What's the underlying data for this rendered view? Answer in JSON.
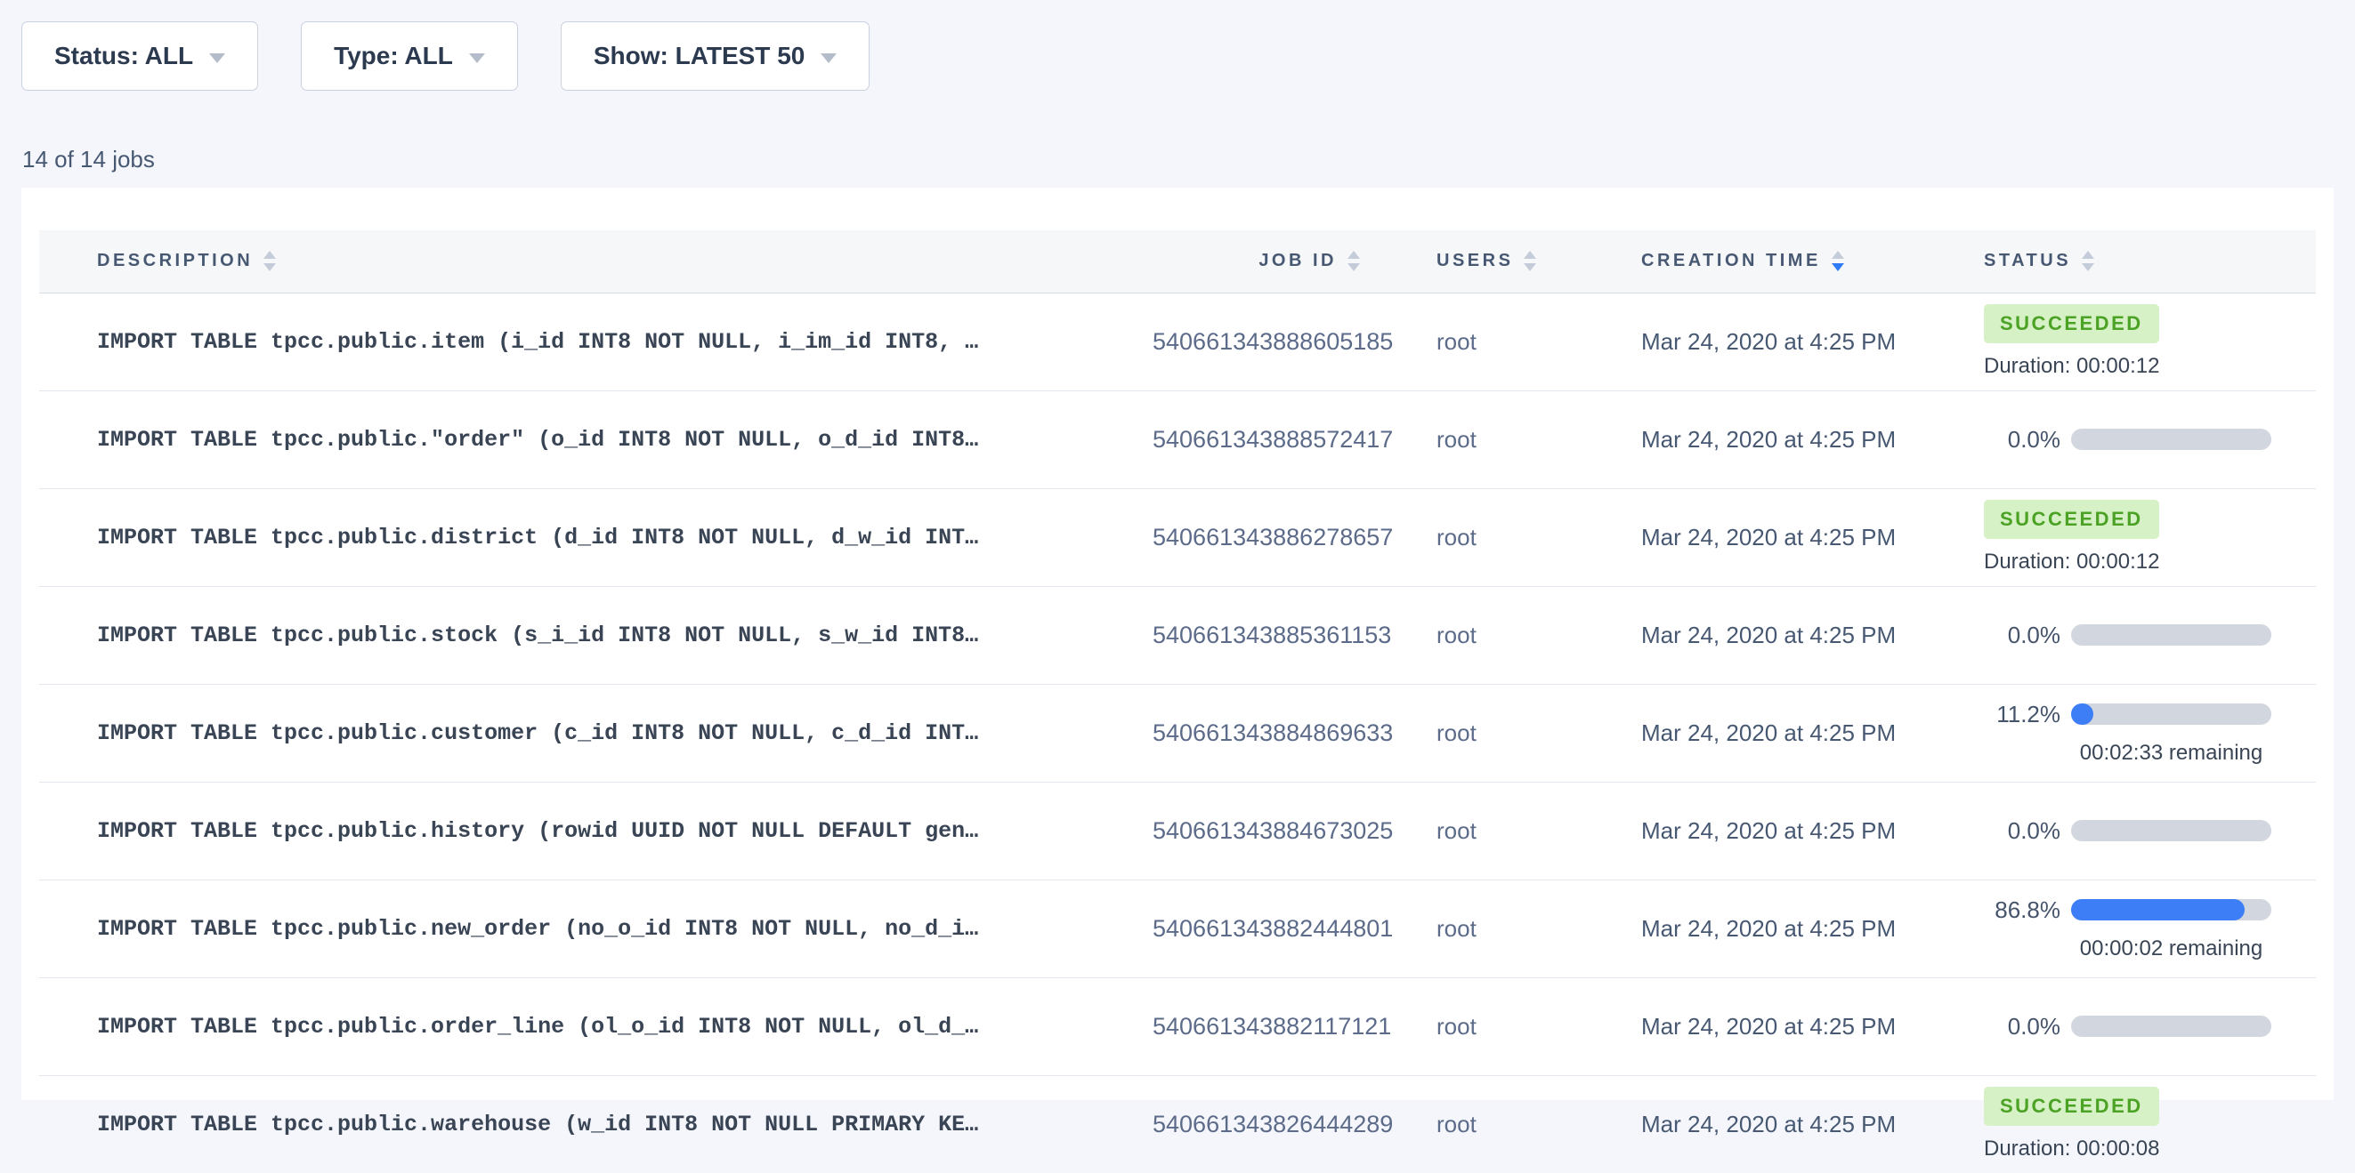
{
  "filters": {
    "status": "Status: ALL",
    "type": "Type: ALL",
    "show": "Show: LATEST 50"
  },
  "summary": "14 of 14 jobs",
  "table": {
    "columns": [
      {
        "label": "DESCRIPTION",
        "sort": "none"
      },
      {
        "label": "JOB ID",
        "sort": "none"
      },
      {
        "label": "USERS",
        "sort": "none"
      },
      {
        "label": "CREATION TIME",
        "sort": "desc"
      },
      {
        "label": "STATUS",
        "sort": "none"
      }
    ],
    "rows": [
      {
        "description": "IMPORT TABLE tpcc.public.item (i_id INT8 NOT NULL, i_im_id INT8, …",
        "job_id": "540661343888605185",
        "user": "root",
        "creation_time": "Mar 24, 2020 at 4:25 PM",
        "status": {
          "type": "succeeded",
          "label": "SUCCEEDED",
          "duration": "Duration: 00:00:12"
        }
      },
      {
        "description": "IMPORT TABLE tpcc.public.\"order\" (o_id INT8 NOT NULL, o_d_id INT8…",
        "job_id": "540661343888572417",
        "user": "root",
        "creation_time": "Mar 24, 2020 at 4:25 PM",
        "status": {
          "type": "progress",
          "percent": "0.0%",
          "percent_value": 0
        }
      },
      {
        "description": "IMPORT TABLE tpcc.public.district (d_id INT8 NOT NULL, d_w_id INT…",
        "job_id": "540661343886278657",
        "user": "root",
        "creation_time": "Mar 24, 2020 at 4:25 PM",
        "status": {
          "type": "succeeded",
          "label": "SUCCEEDED",
          "duration": "Duration: 00:00:12"
        }
      },
      {
        "description": "IMPORT TABLE tpcc.public.stock (s_i_id INT8 NOT NULL, s_w_id INT8…",
        "job_id": "540661343885361153",
        "user": "root",
        "creation_time": "Mar 24, 2020 at 4:25 PM",
        "status": {
          "type": "progress",
          "percent": "0.0%",
          "percent_value": 0
        }
      },
      {
        "description": "IMPORT TABLE tpcc.public.customer (c_id INT8 NOT NULL, c_d_id INT…",
        "job_id": "540661343884869633",
        "user": "root",
        "creation_time": "Mar 24, 2020 at 4:25 PM",
        "status": {
          "type": "progress",
          "percent": "11.2%",
          "percent_value": 11.2,
          "remaining": "00:02:33 remaining"
        }
      },
      {
        "description": "IMPORT TABLE tpcc.public.history (rowid UUID NOT NULL DEFAULT gen…",
        "job_id": "540661343884673025",
        "user": "root",
        "creation_time": "Mar 24, 2020 at 4:25 PM",
        "status": {
          "type": "progress",
          "percent": "0.0%",
          "percent_value": 0
        }
      },
      {
        "description": "IMPORT TABLE tpcc.public.new_order (no_o_id INT8 NOT NULL, no_d_i…",
        "job_id": "540661343882444801",
        "user": "root",
        "creation_time": "Mar 24, 2020 at 4:25 PM",
        "status": {
          "type": "progress",
          "percent": "86.8%",
          "percent_value": 86.8,
          "remaining": "00:00:02 remaining"
        }
      },
      {
        "description": "IMPORT TABLE tpcc.public.order_line (ol_o_id INT8 NOT NULL, ol_d_…",
        "job_id": "540661343882117121",
        "user": "root",
        "creation_time": "Mar 24, 2020 at 4:25 PM",
        "status": {
          "type": "progress",
          "percent": "0.0%",
          "percent_value": 0
        }
      },
      {
        "description": "IMPORT TABLE tpcc.public.warehouse (w_id INT8 NOT NULL PRIMARY KE…",
        "job_id": "540661343826444289",
        "user": "root",
        "creation_time": "Mar 24, 2020 at 4:25 PM",
        "status": {
          "type": "succeeded",
          "label": "SUCCEEDED",
          "duration": "Duration: 00:00:08"
        }
      }
    ]
  },
  "colors": {
    "accent_blue": "#3d7df5",
    "sort_active_blue": "#2f7af5",
    "success_badge_bg": "#d7f1c6",
    "success_badge_text": "#4ba224",
    "progress_track": "#d2d6de",
    "page_background": "#f4f6fb"
  }
}
